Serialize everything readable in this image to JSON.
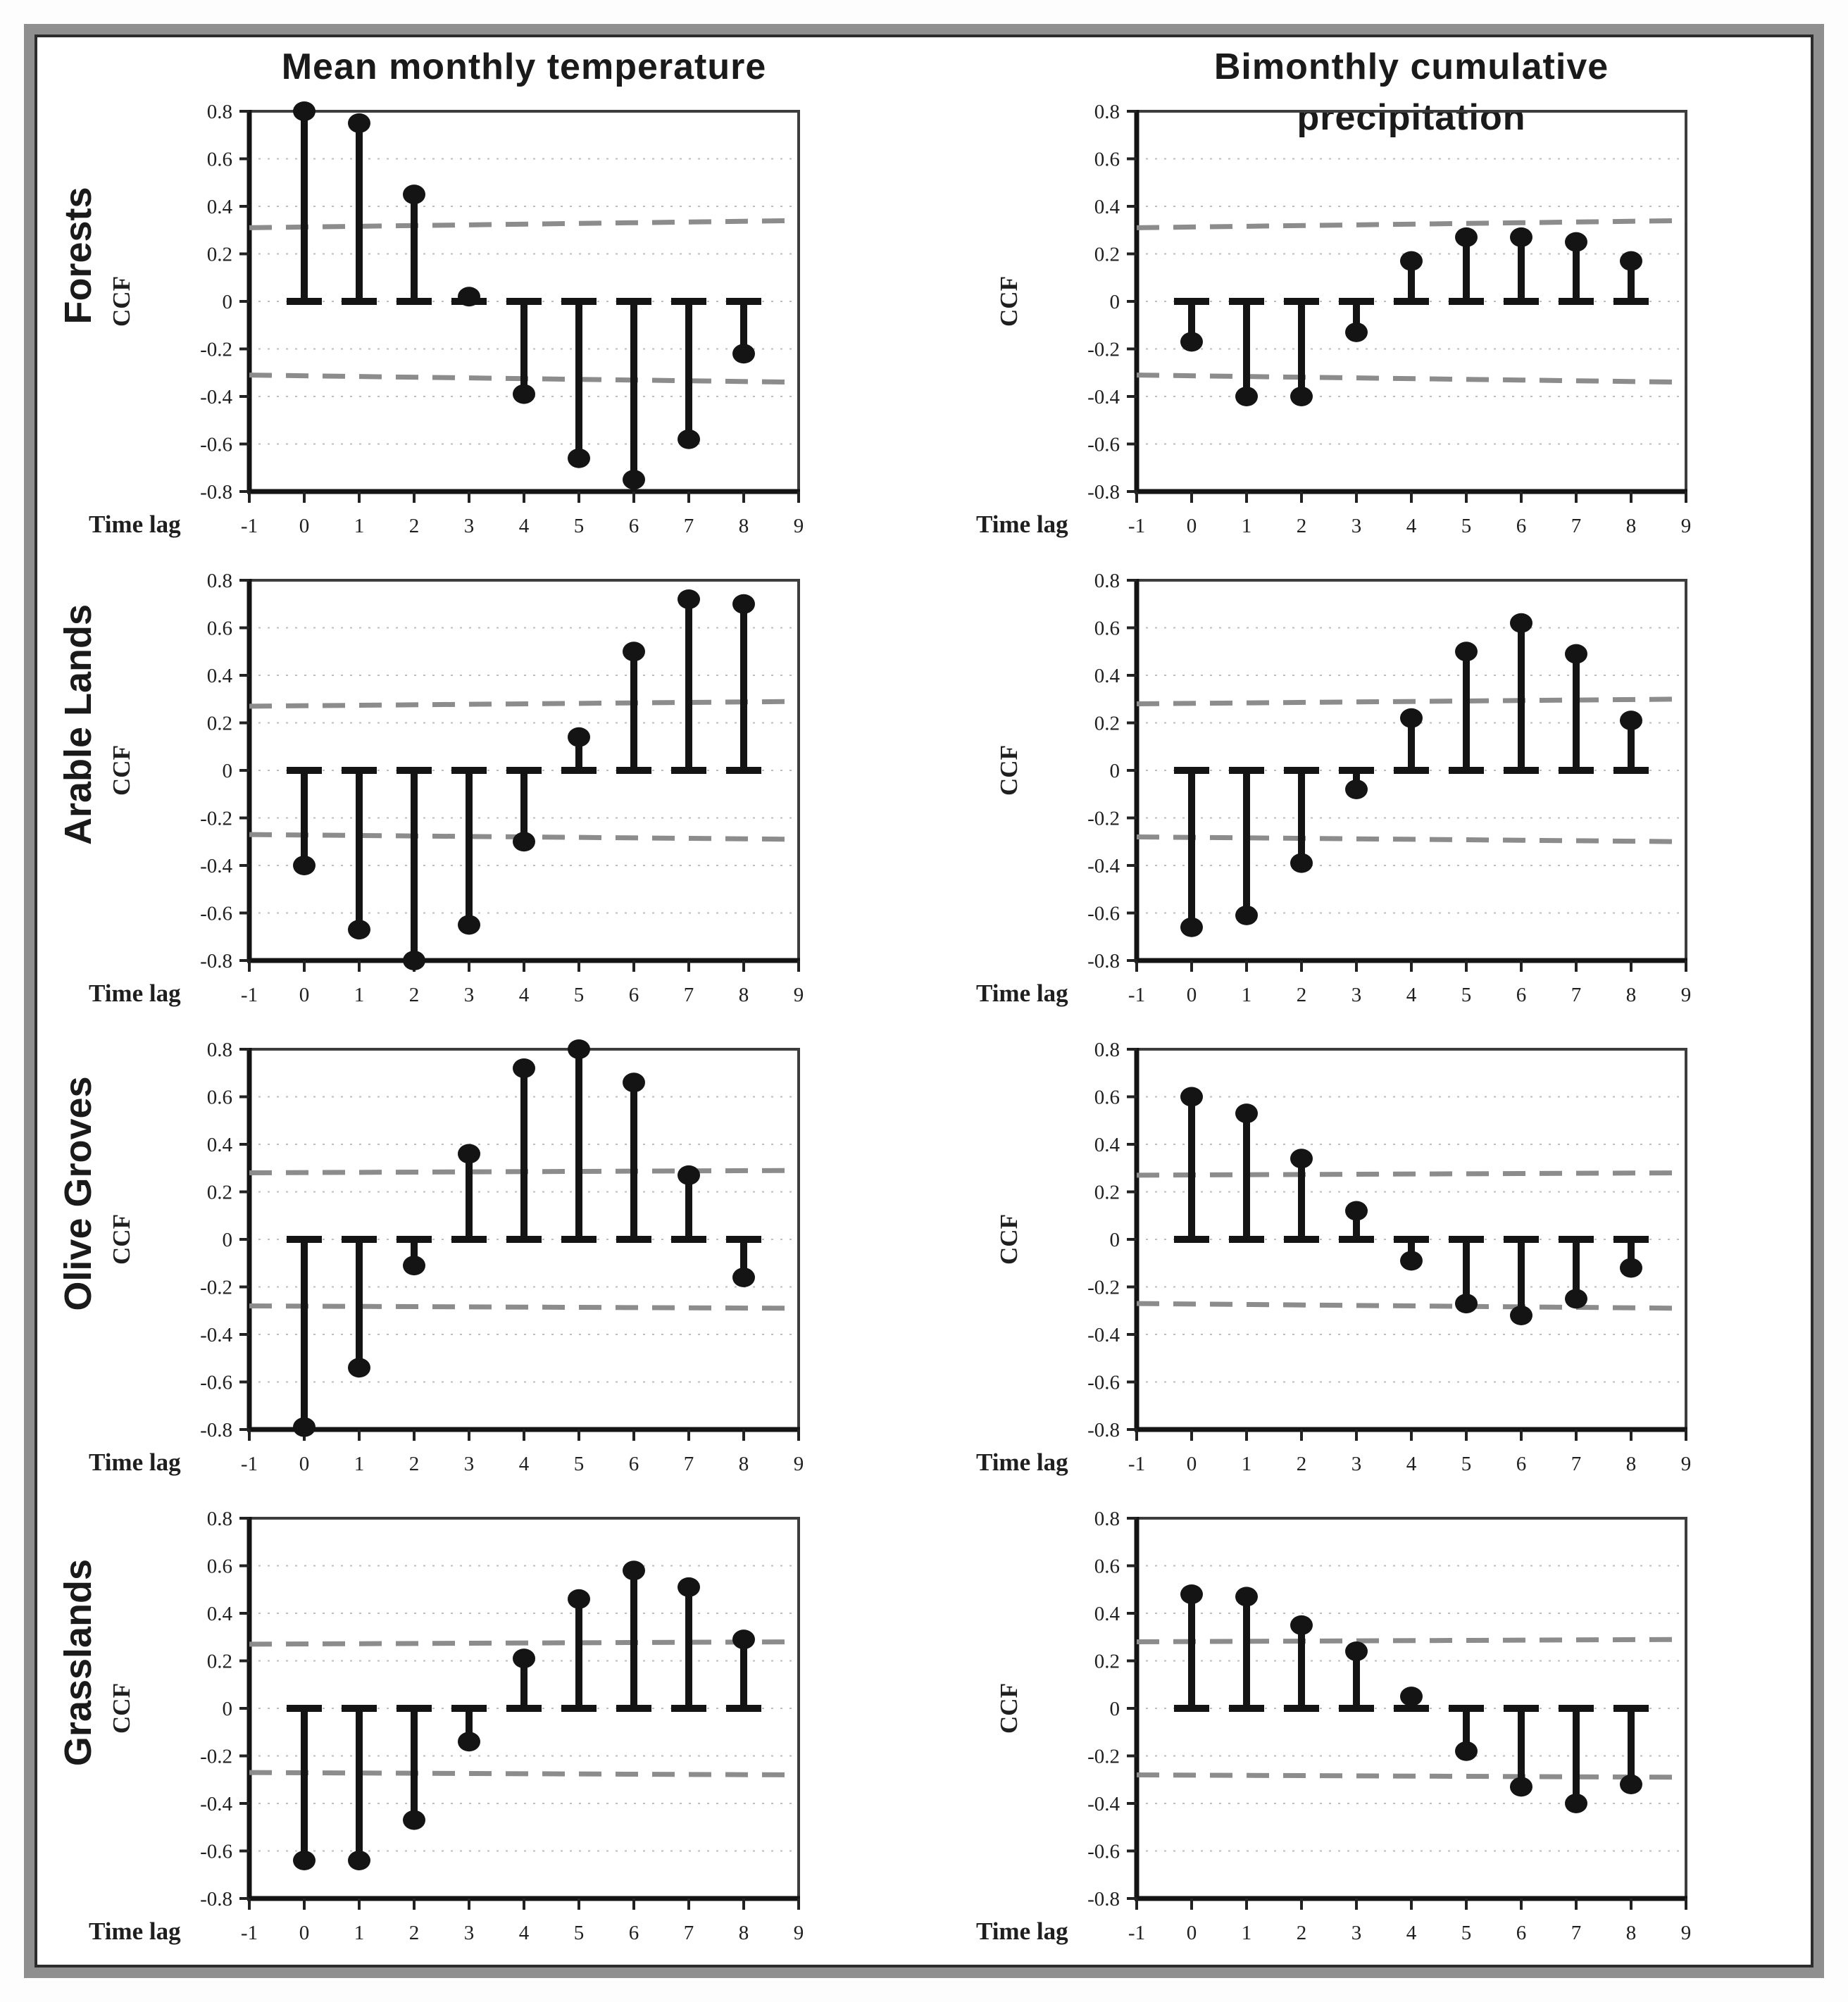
{
  "figure": {
    "column_titles": [
      "Mean monthly temperature",
      "Bimonthly cumulative precipitation"
    ],
    "row_labels": [
      "Forests",
      "Arable Lands",
      "Olive Groves",
      "Grasslands"
    ]
  },
  "axis": {
    "ylabel": "CCF",
    "xlabel": "Time lag",
    "ylim": [
      -0.8,
      0.8
    ],
    "xlim": [
      -1,
      9
    ],
    "ytick_labels": [
      "0.8",
      "0.6",
      "0.4",
      "0.2",
      "0",
      "-0.2",
      "-0.4",
      "-0.6",
      "-0.8"
    ],
    "xtick_labels": [
      "-1",
      "0",
      "1",
      "2",
      "3",
      "4",
      "5",
      "6",
      "7",
      "8",
      "9"
    ]
  },
  "colors": {
    "stem": "#141414",
    "marker": "#141414",
    "confidence_line": "#8c8c8c",
    "gridline": "#bdbdbd",
    "plot_border": "#3d3d3d",
    "axis_line": "#141414",
    "frame": "#8f8f8f"
  },
  "chart_data": [
    {
      "type": "stem",
      "row": "Forests",
      "column": "Mean monthly temperature",
      "x": [
        0,
        1,
        2,
        3,
        4,
        5,
        6,
        7,
        8
      ],
      "values": [
        0.8,
        0.75,
        0.45,
        0.02,
        -0.39,
        -0.66,
        -0.75,
        -0.58,
        -0.22
      ],
      "ci_upper_line": [
        0.31,
        0.34
      ],
      "ci_lower_line": [
        -0.31,
        -0.34
      ]
    },
    {
      "type": "stem",
      "row": "Forests",
      "column": "Bimonthly cumulative precipitation",
      "x": [
        0,
        1,
        2,
        3,
        4,
        5,
        6,
        7,
        8
      ],
      "values": [
        -0.17,
        -0.4,
        -0.4,
        -0.13,
        0.17,
        0.27,
        0.27,
        0.25,
        0.17
      ],
      "ci_upper_line": [
        0.31,
        0.34
      ],
      "ci_lower_line": [
        -0.31,
        -0.34
      ]
    },
    {
      "type": "stem",
      "row": "Arable Lands",
      "column": "Mean monthly temperature",
      "x": [
        0,
        1,
        2,
        3,
        4,
        5,
        6,
        7,
        8
      ],
      "values": [
        -0.4,
        -0.67,
        -0.8,
        -0.65,
        -0.3,
        0.14,
        0.5,
        0.72,
        0.7
      ],
      "ci_upper_line": [
        0.27,
        0.29
      ],
      "ci_lower_line": [
        -0.27,
        -0.29
      ]
    },
    {
      "type": "stem",
      "row": "Arable Lands",
      "column": "Bimonthly cumulative precipitation",
      "x": [
        0,
        1,
        2,
        3,
        4,
        5,
        6,
        7,
        8
      ],
      "values": [
        -0.66,
        -0.61,
        -0.39,
        -0.08,
        0.22,
        0.5,
        0.62,
        0.49,
        0.21
      ],
      "ci_upper_line": [
        0.28,
        0.3
      ],
      "ci_lower_line": [
        -0.28,
        -0.3
      ]
    },
    {
      "type": "stem",
      "row": "Olive Groves",
      "column": "Mean monthly temperature",
      "x": [
        0,
        1,
        2,
        3,
        4,
        5,
        6,
        7,
        8
      ],
      "values": [
        -0.79,
        -0.54,
        -0.11,
        0.36,
        0.72,
        0.8,
        0.66,
        0.27,
        -0.16
      ],
      "ci_upper_line": [
        0.28,
        0.29
      ],
      "ci_lower_line": [
        -0.28,
        -0.29
      ]
    },
    {
      "type": "stem",
      "row": "Olive Groves",
      "column": "Bimonthly cumulative precipitation",
      "x": [
        0,
        1,
        2,
        3,
        4,
        5,
        6,
        7,
        8
      ],
      "values": [
        0.6,
        0.53,
        0.34,
        0.12,
        -0.09,
        -0.27,
        -0.32,
        -0.25,
        -0.12
      ],
      "ci_upper_line": [
        0.27,
        0.28
      ],
      "ci_lower_line": [
        -0.27,
        -0.29
      ]
    },
    {
      "type": "stem",
      "row": "Grasslands",
      "column": "Mean monthly temperature",
      "x": [
        0,
        1,
        2,
        3,
        4,
        5,
        6,
        7,
        8
      ],
      "values": [
        -0.64,
        -0.64,
        -0.47,
        -0.14,
        0.21,
        0.46,
        0.58,
        0.51,
        0.29
      ],
      "ci_upper_line": [
        0.27,
        0.28
      ],
      "ci_lower_line": [
        -0.27,
        -0.28
      ]
    },
    {
      "type": "stem",
      "row": "Grasslands",
      "column": "Bimonthly cumulative precipitation",
      "x": [
        0,
        1,
        2,
        3,
        4,
        5,
        6,
        7,
        8
      ],
      "values": [
        0.48,
        0.47,
        0.35,
        0.24,
        0.05,
        -0.18,
        -0.33,
        -0.4,
        -0.32
      ],
      "ci_upper_line": [
        0.28,
        0.29
      ],
      "ci_lower_line": [
        -0.28,
        -0.29
      ]
    }
  ]
}
